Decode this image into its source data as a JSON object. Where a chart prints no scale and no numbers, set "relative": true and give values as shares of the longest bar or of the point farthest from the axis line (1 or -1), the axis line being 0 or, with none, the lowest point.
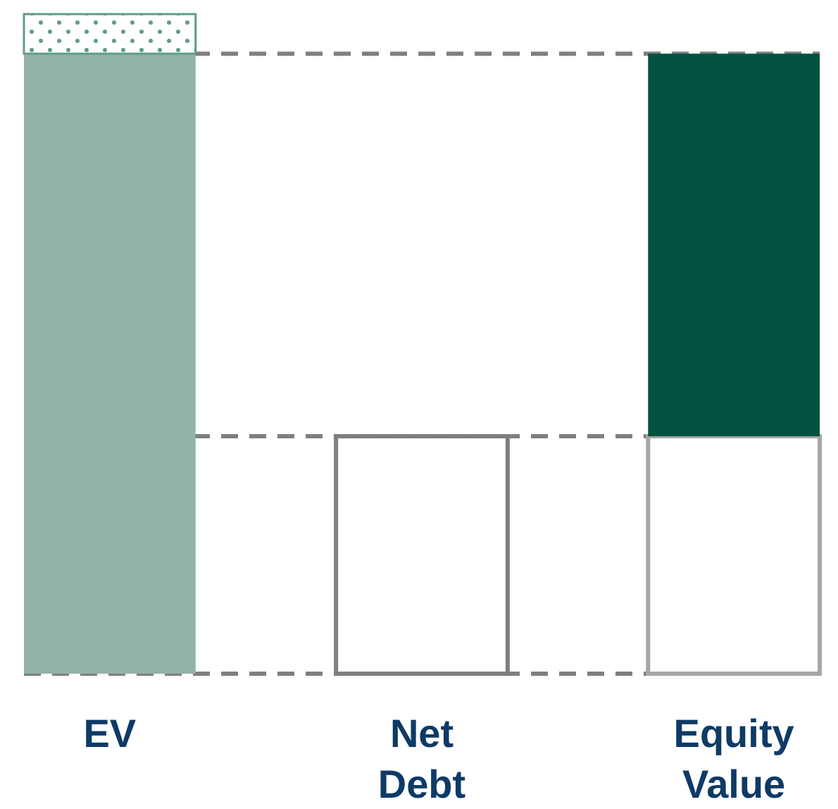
{
  "chart_data": {
    "type": "bar",
    "relative": true,
    "stacked": true,
    "categories": [
      "EV",
      "Net Debt",
      "Equity Value"
    ],
    "series": [
      {
        "colors": [
          "#93b3a8",
          "#ffffff",
          "#ffffff"
        ],
        "values": [
          0.94,
          0.36,
          0.36
        ]
      },
      {
        "colors": [
          "#5f9d86",
          null,
          "#02523f"
        ],
        "values": [
          0.06,
          null,
          0.58
        ]
      }
    ],
    "ref_lines": [
      {
        "axis": "y",
        "value": 0.94,
        "color": "#7f7f7f",
        "line_style": "dashed"
      },
      {
        "axis": "y",
        "value": 0.36,
        "color": "#7f7f7f",
        "line_style": "dashed"
      },
      {
        "axis": "y",
        "value": 0,
        "color": "#7f7f7f",
        "line_style": "dashed"
      }
    ]
  }
}
